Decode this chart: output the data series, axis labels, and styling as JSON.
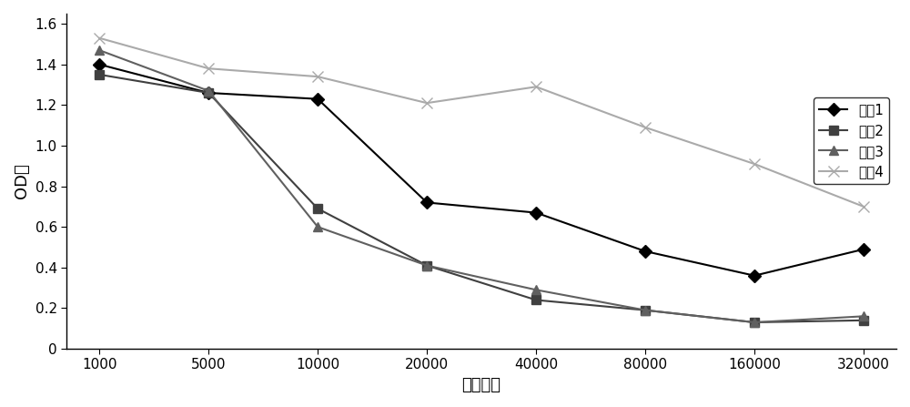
{
  "x_labels": [
    "1000",
    "5000",
    "10000",
    "20000",
    "40000",
    "80000",
    "160000",
    "320000"
  ],
  "x_values": [
    1000,
    5000,
    10000,
    20000,
    40000,
    80000,
    160000,
    320000
  ],
  "series": [
    {
      "name": "样品1",
      "values": [
        1.4,
        1.26,
        1.23,
        0.72,
        0.67,
        0.48,
        0.36,
        0.49
      ],
      "color": "#000000",
      "marker": "D",
      "linestyle": "-",
      "linewidth": 1.5,
      "markersize": 7,
      "zorder": 3
    },
    {
      "name": "样品2",
      "values": [
        1.35,
        1.26,
        0.69,
        0.41,
        0.24,
        0.19,
        0.13,
        0.14
      ],
      "color": "#404040",
      "marker": "s",
      "linestyle": "-",
      "linewidth": 1.5,
      "markersize": 7,
      "zorder": 3
    },
    {
      "name": "样品3",
      "values": [
        1.47,
        1.27,
        0.6,
        0.41,
        0.29,
        0.19,
        0.13,
        0.16
      ],
      "color": "#606060",
      "marker": "^",
      "linestyle": "-",
      "linewidth": 1.5,
      "markersize": 7,
      "zorder": 3
    },
    {
      "name": "样品4",
      "values": [
        1.53,
        1.38,
        1.34,
        1.21,
        1.29,
        1.09,
        0.91,
        0.7
      ],
      "color": "#aaaaaa",
      "marker": "x",
      "linestyle": "-",
      "linewidth": 1.5,
      "markersize": 8,
      "zorder": 3
    }
  ],
  "xlabel": "稀释倍数",
  "ylabel": "OD值",
  "ylim": [
    0,
    1.65
  ],
  "yticks": [
    0,
    0.2,
    0.4,
    0.6,
    0.8,
    1.0,
    1.2,
    1.4,
    1.6
  ],
  "background_color": "#ffffff",
  "legend_loc": "center right",
  "title_fontsize": 13,
  "axis_fontsize": 13,
  "tick_fontsize": 11
}
